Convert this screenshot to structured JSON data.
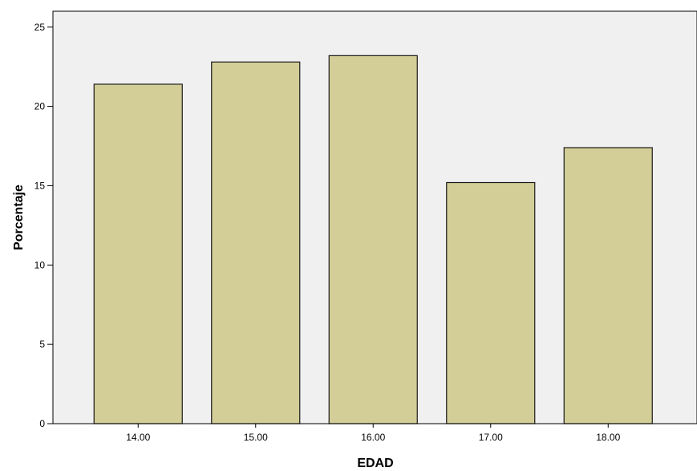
{
  "chart_data": {
    "type": "bar",
    "title": "",
    "xlabel": "EDAD",
    "ylabel": "Porcentaje",
    "categories": [
      "14.00",
      "15.00",
      "16.00",
      "17.00",
      "18.00"
    ],
    "values": [
      21.4,
      22.8,
      23.2,
      15.2,
      17.4
    ],
    "ylim": [
      0,
      26
    ],
    "yticks": [
      "0",
      "5",
      "10",
      "15",
      "20",
      "25"
    ],
    "grid": false,
    "legend": "none",
    "colors": {
      "bar_fill": "#d3ce98",
      "bar_stroke": "#1a1a1a",
      "plot_background": "#f0f0f0",
      "axis": "#000000"
    }
  }
}
